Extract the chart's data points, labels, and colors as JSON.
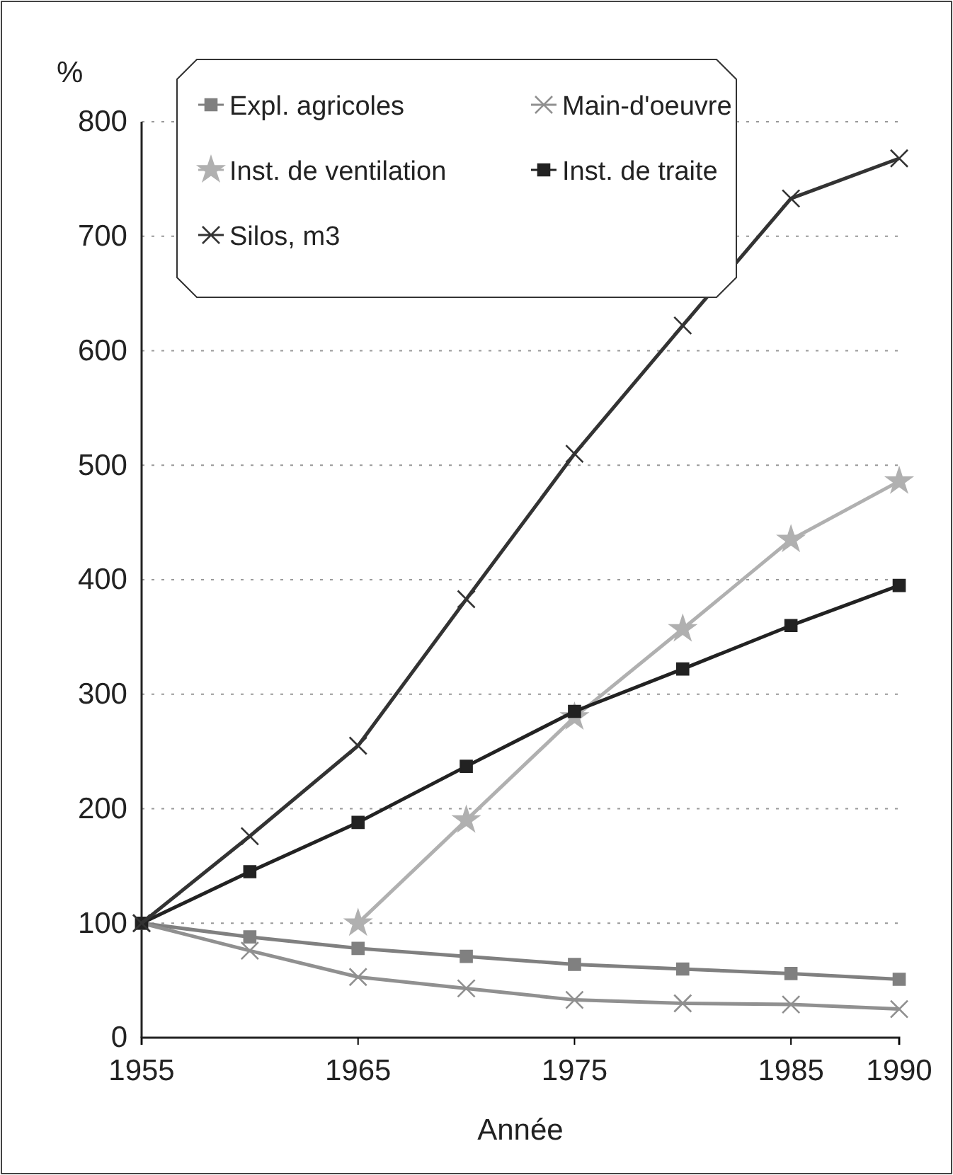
{
  "chart_data": {
    "type": "line",
    "ylabel": "%",
    "xlabel": "Année",
    "x": [
      1955,
      1960,
      1965,
      1970,
      1975,
      1980,
      1985,
      1990
    ],
    "xlim": [
      1955,
      1990
    ],
    "xticks": [
      1955,
      1965,
      1975,
      1985,
      1990
    ],
    "ylim": [
      0,
      800
    ],
    "yticks": [
      0,
      100,
      200,
      300,
      400,
      500,
      600,
      700,
      800
    ],
    "grid": "y",
    "legend": "top",
    "line_style": "solid",
    "series": [
      {
        "name": "Expl. agricoles",
        "color": "#808080",
        "marker": "square",
        "values": [
          100,
          88,
          78,
          71,
          64,
          60,
          56,
          51
        ]
      },
      {
        "name": "Main-d'oeuvre",
        "color": "#909090",
        "marker": "cross",
        "values": [
          100,
          76,
          53,
          43,
          33,
          30,
          29,
          25
        ]
      },
      {
        "name": "Inst. de ventilation",
        "color": "#b0b0b0",
        "marker": "star",
        "values": [
          null,
          null,
          100,
          190,
          280,
          357,
          435,
          486
        ]
      },
      {
        "name": "Inst. de traite",
        "color": "#222222",
        "marker": "square",
        "values": [
          100,
          145,
          188,
          237,
          285,
          322,
          360,
          395
        ]
      },
      {
        "name": "Silos, m3",
        "color": "#333333",
        "marker": "cross",
        "values": [
          100,
          176,
          255,
          383,
          510,
          622,
          733,
          768
        ]
      }
    ]
  }
}
